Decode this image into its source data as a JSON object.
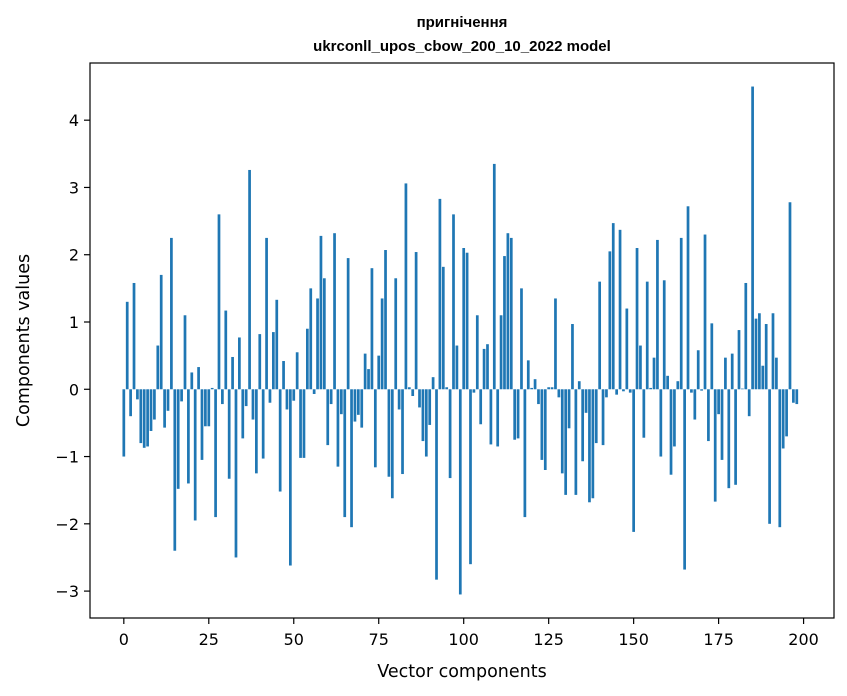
{
  "chart_data": {
    "type": "bar",
    "title": "пригнічення",
    "subtitle": "ukrconll_upos_cbow_200_10_2022 model",
    "xlabel": "Vector components",
    "ylabel": "Components values",
    "xlim": [
      -9.95,
      208.95
    ],
    "ylim": [
      -3.4,
      4.85
    ],
    "xticks": [
      0,
      25,
      50,
      75,
      100,
      125,
      150,
      175,
      200
    ],
    "yticks": [
      -3,
      -2,
      -1,
      0,
      1,
      2,
      3,
      4
    ],
    "xtick_labels": [
      "0",
      "25",
      "50",
      "75",
      "100",
      "125",
      "150",
      "175",
      "200"
    ],
    "ytick_labels": [
      "−3",
      "−2",
      "−1",
      "0",
      "1",
      "2",
      "3",
      "4"
    ],
    "bar_color": "#1f77b4",
    "grid": false,
    "values": [
      -1.0,
      1.3,
      -0.4,
      1.58,
      -0.15,
      -0.8,
      -0.87,
      -0.85,
      -0.62,
      -0.45,
      0.65,
      1.7,
      -0.57,
      -0.32,
      2.25,
      -2.4,
      -1.48,
      -0.18,
      1.1,
      -1.4,
      0.25,
      -1.95,
      0.33,
      -1.05,
      -0.55,
      -0.55,
      0.02,
      -1.9,
      2.6,
      -0.22,
      1.17,
      -1.33,
      0.48,
      -2.5,
      0.77,
      -0.73,
      -0.25,
      3.26,
      -0.45,
      -1.25,
      0.82,
      -1.03,
      2.25,
      -0.2,
      0.85,
      1.33,
      -1.52,
      0.42,
      -0.3,
      -2.62,
      -0.17,
      0.55,
      -1.02,
      -1.02,
      0.9,
      1.5,
      -0.07,
      1.35,
      2.28,
      1.65,
      -0.83,
      -0.22,
      2.32,
      -1.15,
      -0.37,
      -1.9,
      1.95,
      -2.05,
      -0.48,
      -0.38,
      -0.57,
      0.53,
      0.3,
      1.8,
      -1.16,
      0.5,
      1.35,
      2.07,
      -1.3,
      -1.62,
      1.65,
      -0.3,
      -1.26,
      3.06,
      0.03,
      -0.1,
      2.04,
      -0.27,
      -0.77,
      -1.0,
      -0.53,
      0.18,
      -2.83,
      2.83,
      1.82,
      0.03,
      -1.32,
      2.6,
      0.65,
      -3.05,
      2.1,
      2.03,
      -2.6,
      -0.05,
      1.1,
      -0.52,
      0.6,
      0.67,
      -0.82,
      3.35,
      -0.85,
      1.1,
      1.98,
      2.32,
      2.25,
      -0.75,
      -0.73,
      1.5,
      -1.9,
      0.43,
      0.02,
      0.15,
      -0.22,
      -1.05,
      -1.2,
      0.03,
      0.03,
      1.35,
      -0.12,
      -1.25,
      -1.57,
      -0.58,
      0.97,
      -1.57,
      0.12,
      -1.07,
      -0.35,
      -1.68,
      -1.62,
      -0.8,
      1.6,
      -0.83,
      -0.12,
      2.05,
      2.47,
      -0.08,
      2.37,
      -0.03,
      1.2,
      -0.05,
      -2.12,
      2.1,
      0.65,
      -0.72,
      1.6,
      0.02,
      0.47,
      2.22,
      -1.0,
      1.62,
      0.2,
      -1.27,
      -0.85,
      0.12,
      2.25,
      -2.68,
      2.72,
      -0.05,
      -0.45,
      0.58,
      -0.02,
      2.3,
      -0.77,
      0.98,
      -1.67,
      -0.37,
      -1.05,
      0.47,
      -1.47,
      0.53,
      -1.42,
      0.88,
      0.01,
      1.58,
      -0.4,
      4.5,
      1.05,
      1.13,
      0.35,
      0.97,
      -2.0,
      1.13,
      0.47,
      -2.05,
      -0.88,
      -0.7,
      2.78,
      -0.2,
      -0.22
    ]
  }
}
